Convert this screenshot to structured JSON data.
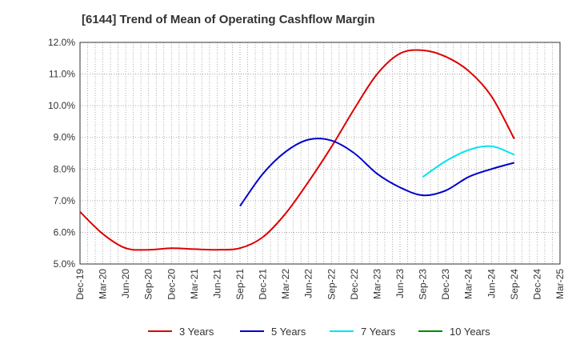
{
  "chart_data": {
    "type": "line",
    "title": "[6144]  Trend of Mean of Operating Cashflow Margin",
    "xlabel": "",
    "ylabel": "",
    "x_ticks": [
      "Dec-19",
      "Mar-20",
      "Jun-20",
      "Sep-20",
      "Dec-20",
      "Mar-21",
      "Jun-21",
      "Sep-21",
      "Dec-21",
      "Mar-22",
      "Jun-22",
      "Sep-22",
      "Dec-22",
      "Mar-23",
      "Jun-23",
      "Sep-23",
      "Dec-23",
      "Mar-24",
      "Jun-24",
      "Sep-24",
      "Dec-24",
      "Mar-25"
    ],
    "y_ticks": [
      "5.0%",
      "6.0%",
      "7.0%",
      "8.0%",
      "9.0%",
      "10.0%",
      "11.0%",
      "12.0%"
    ],
    "ylim": [
      5.0,
      12.0
    ],
    "grid": true,
    "legend_position": "bottom",
    "series": [
      {
        "name": "3 Years",
        "color": "#dd0000",
        "x": [
          "Dec-19",
          "Mar-20",
          "Jun-20",
          "Sep-20",
          "Dec-20",
          "Mar-21",
          "Jun-21",
          "Sep-21",
          "Dec-21",
          "Mar-22",
          "Jun-22",
          "Sep-22",
          "Dec-22",
          "Mar-23",
          "Jun-23",
          "Sep-23",
          "Dec-23",
          "Mar-24",
          "Jun-24",
          "Sep-24"
        ],
        "values": [
          6.65,
          5.95,
          5.5,
          5.45,
          5.5,
          5.47,
          5.45,
          5.5,
          5.85,
          6.6,
          7.6,
          8.7,
          9.9,
          11.0,
          11.65,
          11.75,
          11.55,
          11.1,
          10.3,
          8.95
        ]
      },
      {
        "name": "5 Years",
        "color": "#0000cc",
        "x": [
          "Sep-21",
          "Dec-21",
          "Mar-22",
          "Jun-22",
          "Sep-22",
          "Dec-22",
          "Mar-23",
          "Jun-23",
          "Sep-23",
          "Dec-23",
          "Mar-24",
          "Jun-24",
          "Sep-24"
        ],
        "values": [
          6.83,
          7.85,
          8.55,
          8.93,
          8.9,
          8.5,
          7.85,
          7.42,
          7.17,
          7.32,
          7.75,
          8.0,
          8.2
        ]
      },
      {
        "name": "7 Years",
        "color": "#00e5ee",
        "x": [
          "Sep-23",
          "Dec-23",
          "Mar-24",
          "Jun-24",
          "Sep-24"
        ],
        "values": [
          7.75,
          8.25,
          8.6,
          8.72,
          8.45
        ]
      },
      {
        "name": "10 Years",
        "color": "#008800",
        "x": [],
        "values": []
      }
    ]
  }
}
